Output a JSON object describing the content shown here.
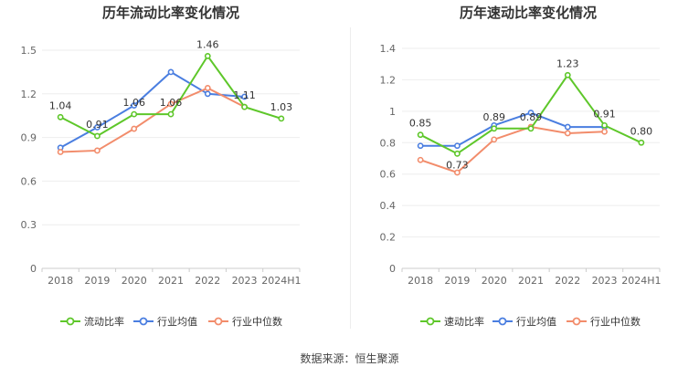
{
  "chart_data": [
    {
      "type": "line",
      "title": "历年流动比率变化情况",
      "categories": [
        "2018",
        "2019",
        "2020",
        "2021",
        "2022",
        "2023",
        "2024H1"
      ],
      "ylim": [
        0,
        1.5
      ],
      "yticks": [
        "0",
        "0.3",
        "0.6",
        "0.9",
        "1.2",
        "1.5"
      ],
      "grid": true,
      "legend_position": "bottom",
      "series": [
        {
          "name": "流动比率",
          "color": "#5ec72a",
          "values": [
            1.04,
            0.91,
            1.06,
            1.06,
            1.46,
            1.11,
            1.03
          ],
          "labels": [
            "1.04",
            "0.91",
            "1.06",
            "1.06",
            "1.46",
            "1.11",
            "1.03"
          ]
        },
        {
          "name": "行业均值",
          "color": "#4a7ee0",
          "values": [
            0.83,
            0.97,
            1.12,
            1.35,
            1.2,
            1.18,
            null
          ]
        },
        {
          "name": "行业中位数",
          "color": "#f28c6b",
          "values": [
            0.8,
            0.81,
            0.96,
            1.13,
            1.24,
            1.11,
            null
          ]
        }
      ]
    },
    {
      "type": "line",
      "title": "历年速动比率变化情况",
      "categories": [
        "2018",
        "2019",
        "2020",
        "2021",
        "2022",
        "2023",
        "2024H1"
      ],
      "ylim": [
        0,
        1.4
      ],
      "yticks": [
        "0",
        "0.2",
        "0.4",
        "0.6",
        "0.8",
        "1",
        "1.2",
        "1.4"
      ],
      "grid": true,
      "legend_position": "bottom",
      "series": [
        {
          "name": "速动比率",
          "color": "#5ec72a",
          "values": [
            0.85,
            0.73,
            0.89,
            0.89,
            1.23,
            0.91,
            0.8
          ],
          "labels": [
            "0.85",
            "0.73",
            "0.89",
            "0.89",
            "1.23",
            "0.91",
            "0.80"
          ]
        },
        {
          "name": "行业均值",
          "color": "#4a7ee0",
          "values": [
            0.78,
            0.78,
            0.91,
            0.99,
            0.9,
            0.9,
            null
          ]
        },
        {
          "name": "行业中位数",
          "color": "#f28c6b",
          "values": [
            0.69,
            0.61,
            0.82,
            0.9,
            0.86,
            0.87,
            null
          ]
        }
      ]
    }
  ],
  "footer": {
    "source": "数据来源：恒生聚源"
  }
}
